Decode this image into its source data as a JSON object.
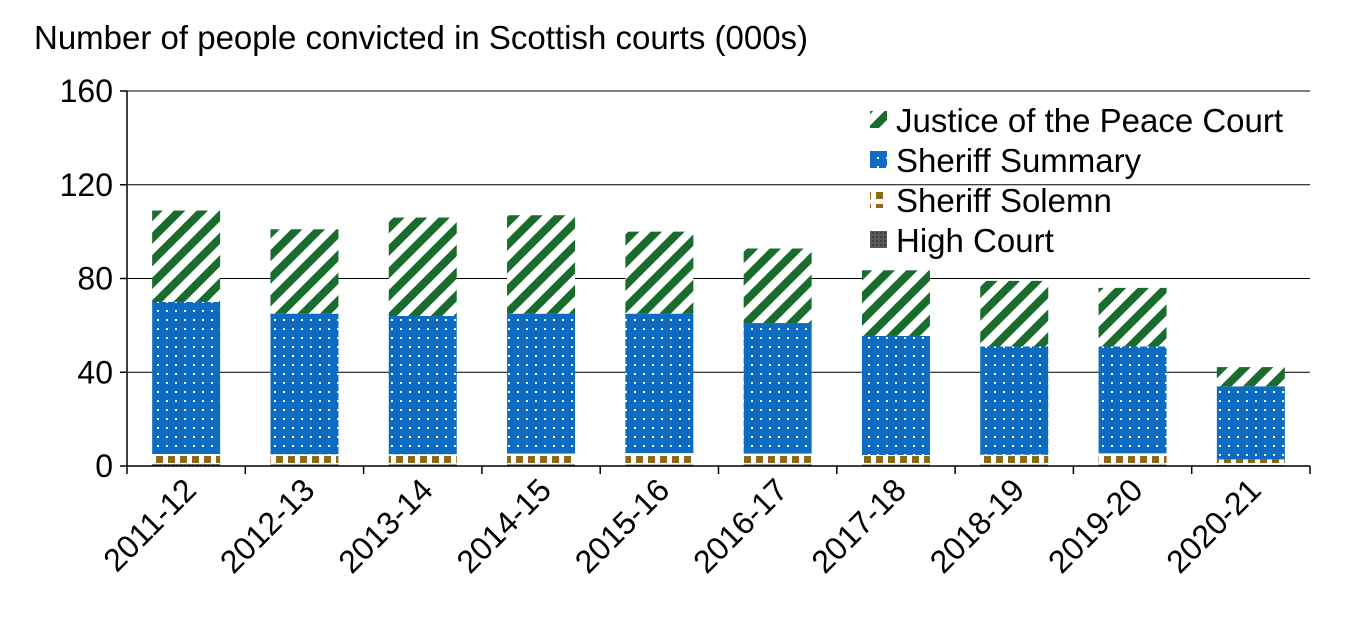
{
  "chart_data": {
    "type": "bar",
    "stacked": true,
    "title": "Number of people convicted in Scottish courts (000s)",
    "xlabel": "",
    "ylabel": "",
    "ylim": [
      0,
      160
    ],
    "y_ticks": [
      "0",
      "40",
      "80",
      "120",
      "160"
    ],
    "grid": true,
    "legend_position": "top-right",
    "categories": [
      "2011-12",
      "2012-13",
      "2013-14",
      "2014-15",
      "2015-16",
      "2016-17",
      "2017-18",
      "2018-19",
      "2019-20",
      "2020-21"
    ],
    "series": [
      {
        "name": "High Court",
        "color": "#595959",
        "values": [
          0.8,
          0.7,
          0.7,
          0.7,
          0.6,
          0.7,
          0.6,
          0.6,
          0.6,
          0.4
        ]
      },
      {
        "name": "Sheriff Solemn",
        "color": "#8B6914",
        "values": [
          4.3,
          4.3,
          4.3,
          4.6,
          4.9,
          4.6,
          4.1,
          4.2,
          4.8,
          2.4
        ]
      },
      {
        "name": "Sheriff Summary",
        "color": "#0E6BC2",
        "values": [
          64.9,
          60.0,
          59.0,
          59.7,
          59.5,
          55.7,
          50.8,
          46.2,
          45.6,
          31.2
        ]
      },
      {
        "name": "Justice of the Peace Court",
        "color": "#1A6B2E",
        "values": [
          39.0,
          36.0,
          42.0,
          42.0,
          35.0,
          31.8,
          28.0,
          28.0,
          25.0,
          8.2
        ]
      }
    ]
  }
}
